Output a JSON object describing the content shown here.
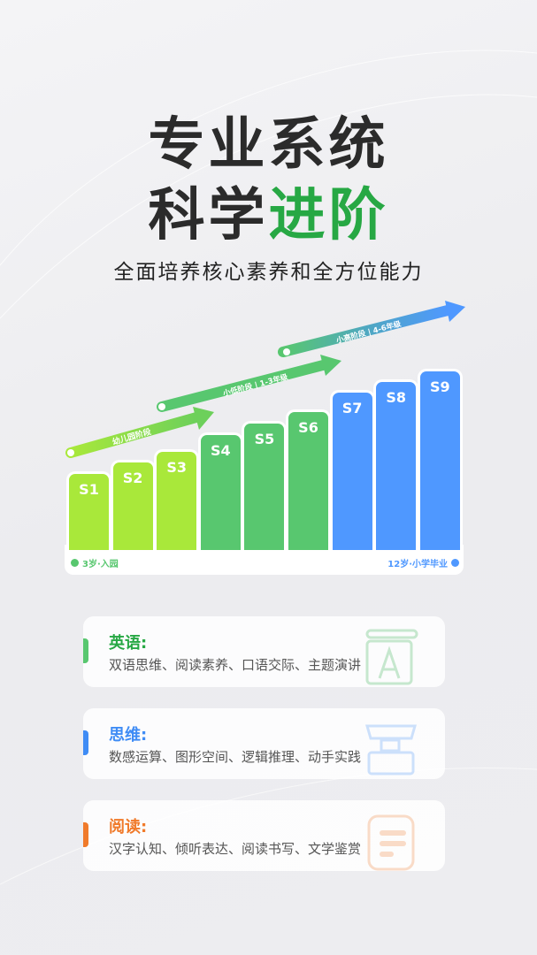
{
  "headline": {
    "line1": "专业系统",
    "line2_a": "科学",
    "line2_b": "进阶"
  },
  "subtitle": "全面培养核心素养和全方位能力",
  "stages": [
    {
      "label": "幼儿园阶段",
      "color": "#a9e83a"
    },
    {
      "label": "小低阶段 | 1-3年级",
      "color": "#58c76f"
    },
    {
      "label": "小高阶段 | 4-6年级",
      "color": "#4f98ff"
    }
  ],
  "levels": [
    "S1",
    "S2",
    "S3",
    "S4",
    "S5",
    "S6",
    "S7",
    "S8",
    "S9"
  ],
  "start_label": "3岁·入园",
  "end_label": "12岁·小学毕业",
  "subjects": [
    {
      "title": "英语:",
      "desc": "双语思维、阅读素养、口语交际、主题演讲",
      "color": "#27a844",
      "icon": "letter-a-icon"
    },
    {
      "title": "思维:",
      "desc": "数感运算、图形空间、逻辑推理、动手实践",
      "color": "#3f8cf5",
      "icon": "blocks-icon"
    },
    {
      "title": "阅读:",
      "desc": "汉字认知、倾听表达、阅读书写、文学鉴赏",
      "color": "#f07a2a",
      "icon": "document-icon"
    }
  ]
}
